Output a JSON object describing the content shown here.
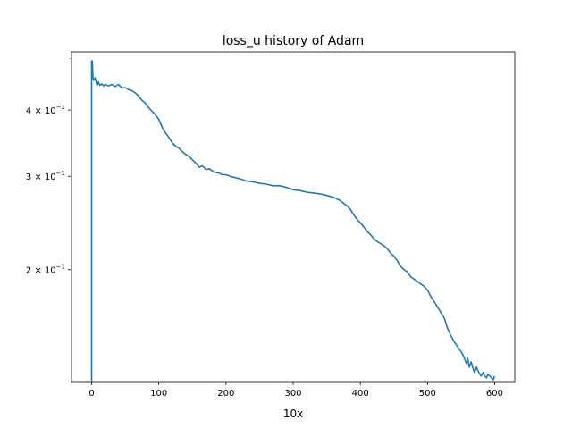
{
  "chart_data": {
    "type": "line",
    "title": "loss_u history of Adam",
    "xlabel": "10x",
    "ylabel": "",
    "xscale": "linear",
    "yscale": "log",
    "xlim": [
      -30,
      630
    ],
    "ylim": [
      0.123,
      0.515
    ],
    "grid": false,
    "x_ticks": [
      {
        "value": 0,
        "label": "0"
      },
      {
        "value": 100,
        "label": "100"
      },
      {
        "value": 200,
        "label": "200"
      },
      {
        "value": 300,
        "label": "300"
      },
      {
        "value": 400,
        "label": "400"
      },
      {
        "value": 500,
        "label": "500"
      },
      {
        "value": 600,
        "label": "600"
      }
    ],
    "y_ticks": [
      {
        "value": 0.2,
        "base": "2 × 10",
        "exp": "−1"
      },
      {
        "value": 0.3,
        "base": "3 × 10",
        "exp": "−1"
      },
      {
        "value": 0.4,
        "base": "4 × 10",
        "exp": "−1"
      }
    ],
    "y_minor_ticks": [
      0.5
    ],
    "line_color": "#1f77b4",
    "series": [
      {
        "x": [
          0,
          0,
          1,
          2,
          3,
          5,
          8,
          10,
          12,
          15,
          18,
          20,
          25,
          30,
          35,
          40,
          45,
          50,
          55,
          60,
          65,
          70,
          75,
          80,
          85,
          90,
          95,
          100,
          105,
          110,
          115,
          120,
          125,
          130,
          135,
          140,
          145,
          150,
          155,
          160,
          165,
          170,
          175,
          180,
          185,
          190,
          195,
          200,
          210,
          220,
          230,
          240,
          250,
          260,
          270,
          280,
          290,
          300,
          310,
          320,
          330,
          340,
          350,
          360,
          370,
          380,
          385,
          390,
          395,
          400,
          405,
          410,
          415,
          420,
          425,
          430,
          435,
          440,
          445,
          450,
          455,
          460,
          465,
          470,
          475,
          480,
          485,
          490,
          495,
          500,
          505,
          510,
          515,
          520,
          525,
          530,
          535,
          540,
          545,
          550,
          553,
          556,
          558,
          560,
          562,
          565,
          568,
          570,
          573,
          575,
          578,
          580,
          583,
          585,
          588,
          590,
          593,
          595,
          598,
          600
        ],
        "y": [
          0.1,
          0.495,
          0.495,
          0.46,
          0.455,
          0.46,
          0.445,
          0.452,
          0.445,
          0.448,
          0.444,
          0.447,
          0.444,
          0.447,
          0.443,
          0.447,
          0.44,
          0.441,
          0.437,
          0.435,
          0.431,
          0.425,
          0.417,
          0.412,
          0.404,
          0.398,
          0.392,
          0.384,
          0.371,
          0.362,
          0.355,
          0.347,
          0.342,
          0.339,
          0.334,
          0.33,
          0.327,
          0.322,
          0.318,
          0.312,
          0.314,
          0.309,
          0.31,
          0.307,
          0.305,
          0.304,
          0.302,
          0.302,
          0.299,
          0.297,
          0.294,
          0.293,
          0.291,
          0.29,
          0.288,
          0.288,
          0.286,
          0.283,
          0.282,
          0.28,
          0.279,
          0.278,
          0.276,
          0.274,
          0.27,
          0.264,
          0.26,
          0.254,
          0.249,
          0.245,
          0.241,
          0.236,
          0.233,
          0.229,
          0.226,
          0.224,
          0.222,
          0.219,
          0.215,
          0.212,
          0.208,
          0.203,
          0.2,
          0.198,
          0.194,
          0.192,
          0.19,
          0.188,
          0.186,
          0.183,
          0.178,
          0.174,
          0.17,
          0.166,
          0.162,
          0.155,
          0.15,
          0.146,
          0.143,
          0.14,
          0.138,
          0.135,
          0.133,
          0.136,
          0.131,
          0.134,
          0.13,
          0.128,
          0.131,
          0.129,
          0.127,
          0.126,
          0.128,
          0.126,
          0.125,
          0.127,
          0.126,
          0.125,
          0.124,
          0.126
        ]
      }
    ]
  }
}
